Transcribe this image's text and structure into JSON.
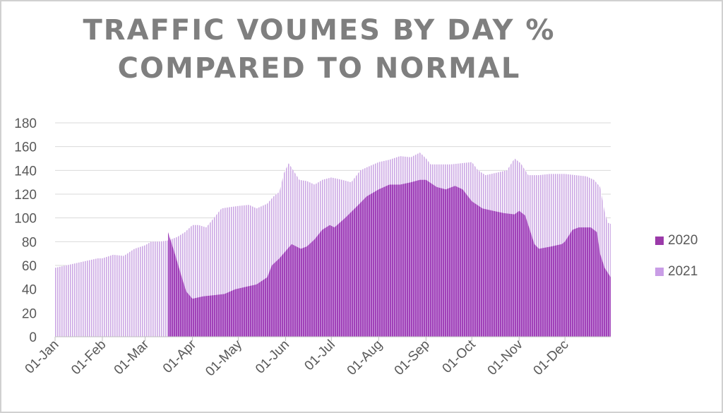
{
  "chart_data": {
    "type": "area",
    "title": "TRAFFIC VOUMES BY DAY %\nCOMPARED TO NORMAL",
    "xlabel": "",
    "ylabel": "",
    "ylim": [
      0,
      180
    ],
    "yticks": [
      0,
      20,
      40,
      60,
      80,
      100,
      120,
      140,
      160,
      180
    ],
    "xticks": [
      "01-Jan",
      "01-Feb",
      "01-Mar",
      "01-Apr",
      "01-May",
      "01-Jun",
      "01-Jul",
      "01-Aug",
      "01-Sep",
      "01-Oct",
      "01-Nov",
      "01-Dec"
    ],
    "grid": true,
    "legend_position": "right",
    "series": [
      {
        "name": "2020",
        "color": "#a040b8",
        "points": [
          [
            "01-Jan",
            0
          ],
          [
            "16-Mar",
            0
          ],
          [
            "16-Mar",
            88
          ],
          [
            "20-Mar",
            72
          ],
          [
            "25-Mar",
            50
          ],
          [
            "28-Mar",
            38
          ],
          [
            "01-Apr",
            32
          ],
          [
            "08-Apr",
            34
          ],
          [
            "15-Apr",
            35
          ],
          [
            "22-Apr",
            36
          ],
          [
            "29-Apr",
            40
          ],
          [
            "06-May",
            42
          ],
          [
            "13-May",
            44
          ],
          [
            "20-May",
            50
          ],
          [
            "23-May",
            60
          ],
          [
            "28-May",
            66
          ],
          [
            "01-Jun",
            72
          ],
          [
            "05-Jun",
            78
          ],
          [
            "11-Jun",
            74
          ],
          [
            "15-Jun",
            76
          ],
          [
            "20-Jun",
            82
          ],
          [
            "25-Jun",
            90
          ],
          [
            "30-Jun",
            94
          ],
          [
            "03-Jul",
            92
          ],
          [
            "10-Jul",
            100
          ],
          [
            "18-Jul",
            110
          ],
          [
            "24-Jul",
            118
          ],
          [
            "01-Aug",
            124
          ],
          [
            "08-Aug",
            128
          ],
          [
            "15-Aug",
            128
          ],
          [
            "22-Aug",
            130
          ],
          [
            "28-Aug",
            132
          ],
          [
            "01-Sep",
            132
          ],
          [
            "08-Sep",
            126
          ],
          [
            "14-Sep",
            124
          ],
          [
            "20-Sep",
            127
          ],
          [
            "25-Sep",
            124
          ],
          [
            "01-Oct",
            114
          ],
          [
            "08-Oct",
            108
          ],
          [
            "15-Oct",
            106
          ],
          [
            "22-Oct",
            104
          ],
          [
            "29-Oct",
            103
          ],
          [
            "01-Nov",
            106
          ],
          [
            "05-Nov",
            102
          ],
          [
            "08-Nov",
            90
          ],
          [
            "11-Nov",
            78
          ],
          [
            "14-Nov",
            74
          ],
          [
            "22-Nov",
            76
          ],
          [
            "29-Nov",
            78
          ],
          [
            "01-Dec",
            80
          ],
          [
            "06-Dec",
            90
          ],
          [
            "10-Dec",
            92
          ],
          [
            "18-Dec",
            92
          ],
          [
            "22-Dec",
            88
          ],
          [
            "24-Dec",
            70
          ],
          [
            "27-Dec",
            58
          ],
          [
            "31-Dec",
            50
          ]
        ]
      },
      {
        "name": "2021",
        "color": "#cca8e4",
        "points": [
          [
            "01-Jan",
            58
          ],
          [
            "08-Jan",
            60
          ],
          [
            "15-Jan",
            62
          ],
          [
            "22-Jan",
            64
          ],
          [
            "29-Jan",
            66
          ],
          [
            "01-Feb",
            66
          ],
          [
            "08-Feb",
            69
          ],
          [
            "15-Feb",
            68
          ],
          [
            "22-Feb",
            74
          ],
          [
            "01-Mar",
            77
          ],
          [
            "05-Mar",
            80
          ],
          [
            "10-Mar",
            80
          ],
          [
            "16-Mar",
            81
          ],
          [
            "22-Mar",
            84
          ],
          [
            "27-Mar",
            88
          ],
          [
            "01-Apr",
            94
          ],
          [
            "05-Apr",
            94
          ],
          [
            "10-Apr",
            92
          ],
          [
            "15-Apr",
            100
          ],
          [
            "20-Apr",
            108
          ],
          [
            "25-Apr",
            109
          ],
          [
            "01-May",
            110
          ],
          [
            "08-May",
            111
          ],
          [
            "13-May",
            108
          ],
          [
            "20-May",
            112
          ],
          [
            "24-May",
            118
          ],
          [
            "28-May",
            122
          ],
          [
            "31-May",
            138
          ],
          [
            "03-Jun",
            146
          ],
          [
            "06-Jun",
            140
          ],
          [
            "10-Jun",
            132
          ],
          [
            "15-Jun",
            131
          ],
          [
            "20-Jun",
            128
          ],
          [
            "25-Jun",
            132
          ],
          [
            "01-Jul",
            134
          ],
          [
            "08-Jul",
            132
          ],
          [
            "14-Jul",
            130
          ],
          [
            "20-Jul",
            140
          ],
          [
            "25-Jul",
            143
          ],
          [
            "01-Aug",
            147
          ],
          [
            "08-Aug",
            149
          ],
          [
            "15-Aug",
            152
          ],
          [
            "22-Aug",
            151
          ],
          [
            "28-Aug",
            155
          ],
          [
            "01-Sep",
            150
          ],
          [
            "04-Sep",
            145
          ],
          [
            "10-Sep",
            145
          ],
          [
            "17-Sep",
            145
          ],
          [
            "24-Sep",
            146
          ],
          [
            "01-Oct",
            147
          ],
          [
            "05-Oct",
            140
          ],
          [
            "10-Oct",
            136
          ],
          [
            "17-Oct",
            138
          ],
          [
            "24-Oct",
            140
          ],
          [
            "29-Oct",
            150
          ],
          [
            "02-Nov",
            146
          ],
          [
            "07-Nov",
            136
          ],
          [
            "14-Nov",
            136
          ],
          [
            "21-Nov",
            137
          ],
          [
            "28-Nov",
            137
          ],
          [
            "01-Dec",
            137
          ],
          [
            "08-Dec",
            136
          ],
          [
            "15-Dec",
            135
          ],
          [
            "20-Dec",
            132
          ],
          [
            "24-Dec",
            126
          ],
          [
            "27-Dec",
            105
          ],
          [
            "29-Dec",
            96
          ],
          [
            "31-Dec",
            95
          ]
        ]
      }
    ]
  }
}
